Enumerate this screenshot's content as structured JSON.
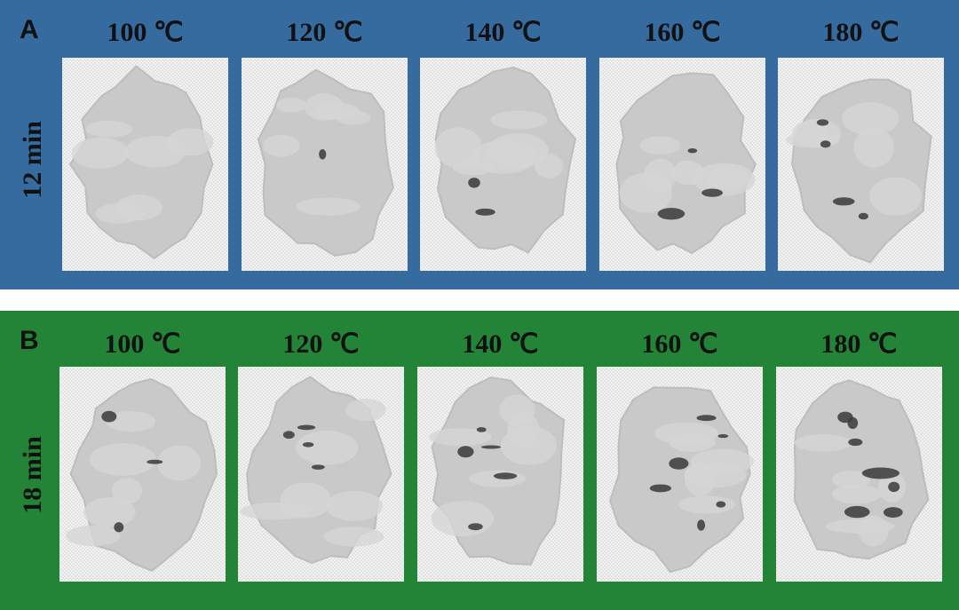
{
  "panels": [
    {
      "label": "A",
      "time": "12 min",
      "temperatures": [
        "100 ℃",
        "120 ℃",
        "140 ℃",
        "160 ℃",
        "180 ℃"
      ]
    },
    {
      "label": "B",
      "time": "18 min",
      "temperatures": [
        "100 ℃",
        "120 ℃",
        "140 ℃",
        "160 ℃",
        "180 ℃"
      ]
    }
  ]
}
